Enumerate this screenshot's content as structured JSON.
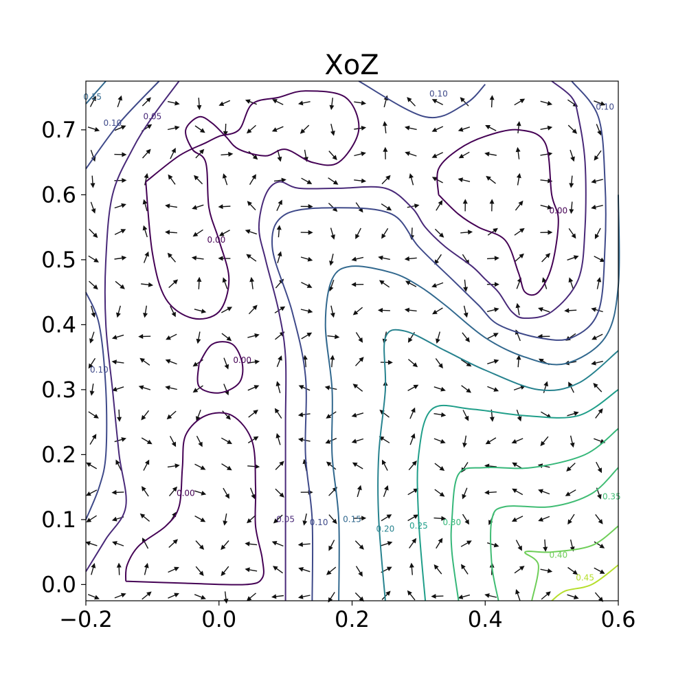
{
  "chart_data": {
    "type": "contour",
    "title": "XoZ",
    "xlabel": "",
    "ylabel": "",
    "xlim": [
      -0.2,
      0.6
    ],
    "ylim": [
      -0.025,
      0.775
    ],
    "x_ticks": [
      -0.2,
      0.0,
      0.2,
      0.4,
      0.6
    ],
    "x_tick_labels": [
      "−0.2",
      "0.0",
      "0.2",
      "0.4",
      "0.6"
    ],
    "y_ticks": [
      0.0,
      0.1,
      0.2,
      0.3,
      0.4,
      0.5,
      0.6,
      0.7
    ],
    "y_tick_labels": [
      "0.0",
      "0.1",
      "0.2",
      "0.3",
      "0.4",
      "0.5",
      "0.6",
      "0.7"
    ],
    "grid": false,
    "colormap": "viridis",
    "quiver": {
      "color": "#111111",
      "grid_step": 0.04
    },
    "levels": [
      {
        "value": 0.0,
        "label": "0.00",
        "color": "#440154",
        "paths": [
          [
            [
              -0.14,
              0.005
            ],
            [
              -0.138,
              0.03
            ],
            [
              -0.12,
              0.06
            ],
            [
              -0.08,
              0.09
            ],
            [
              -0.06,
              0.12
            ],
            [
              -0.055,
              0.18
            ],
            [
              -0.05,
              0.23
            ],
            [
              -0.02,
              0.26
            ],
            [
              0.02,
              0.26
            ],
            [
              0.05,
              0.22
            ],
            [
              0.055,
              0.15
            ],
            [
              0.055,
              0.09
            ],
            [
              0.065,
              0.04
            ],
            [
              0.065,
              0.01
            ],
            [
              0.04,
              0.0
            ],
            [
              -0.05,
              0.002
            ],
            [
              -0.14,
              0.005
            ]
          ],
          [
            [
              -0.03,
              0.34
            ],
            [
              -0.01,
              0.37
            ],
            [
              0.02,
              0.37
            ],
            [
              0.035,
              0.34
            ],
            [
              0.03,
              0.31
            ],
            [
              0.0,
              0.295
            ],
            [
              -0.03,
              0.305
            ],
            [
              -0.03,
              0.34
            ]
          ],
          [
            [
              -0.11,
              0.62
            ],
            [
              -0.1,
              0.51
            ],
            [
              -0.08,
              0.44
            ],
            [
              -0.04,
              0.41
            ],
            [
              0.0,
              0.42
            ],
            [
              0.015,
              0.47
            ],
            [
              0.0,
              0.53
            ],
            [
              -0.015,
              0.58
            ],
            [
              -0.02,
              0.65
            ],
            [
              -0.04,
              0.67
            ],
            [
              -0.05,
              0.7
            ],
            [
              -0.03,
              0.72
            ],
            [
              -0.01,
              0.71
            ],
            [
              0.01,
              0.69
            ],
            [
              0.03,
              0.67
            ],
            [
              0.07,
              0.66
            ],
            [
              0.1,
              0.67
            ],
            [
              0.14,
              0.65
            ],
            [
              0.18,
              0.65
            ],
            [
              0.21,
              0.7
            ],
            [
              0.19,
              0.75
            ],
            [
              0.13,
              0.76
            ],
            [
              0.09,
              0.75
            ],
            [
              0.05,
              0.74
            ],
            [
              0.03,
              0.7
            ],
            [
              0.0,
              0.69
            ],
            [
              -0.02,
              0.68
            ],
            [
              -0.06,
              0.66
            ],
            [
              -0.11,
              0.62
            ]
          ],
          [
            [
              0.33,
              0.6
            ],
            [
              0.33,
              0.64
            ],
            [
              0.36,
              0.67
            ],
            [
              0.4,
              0.69
            ],
            [
              0.45,
              0.7
            ],
            [
              0.49,
              0.68
            ],
            [
              0.5,
              0.6
            ],
            [
              0.51,
              0.56
            ],
            [
              0.5,
              0.49
            ],
            [
              0.48,
              0.45
            ],
            [
              0.46,
              0.45
            ],
            [
              0.45,
              0.48
            ],
            [
              0.43,
              0.53
            ],
            [
              0.39,
              0.55
            ],
            [
              0.36,
              0.57
            ],
            [
              0.33,
              0.6
            ]
          ]
        ]
      },
      {
        "value": 0.05,
        "label": "0.05",
        "color": "#482878",
        "paths": [
          [
            [
              -0.06,
              0.775
            ],
            [
              -0.1,
              0.72
            ],
            [
              -0.13,
              0.67
            ],
            [
              -0.16,
              0.6
            ],
            [
              -0.17,
              0.5
            ],
            [
              -0.17,
              0.4
            ],
            [
              -0.16,
              0.3
            ],
            [
              -0.15,
              0.2
            ],
            [
              -0.14,
              0.12
            ],
            [
              -0.17,
              0.07
            ],
            [
              -0.2,
              0.02
            ]
          ],
          [
            [
              0.1,
              -0.025
            ],
            [
              0.1,
              0.05
            ],
            [
              0.1,
              0.15
            ],
            [
              0.1,
              0.25
            ],
            [
              0.1,
              0.35
            ],
            [
              0.09,
              0.42
            ],
            [
              0.07,
              0.5
            ],
            [
              0.06,
              0.55
            ],
            [
              0.07,
              0.6
            ],
            [
              0.09,
              0.62
            ],
            [
              0.12,
              0.61
            ],
            [
              0.18,
              0.61
            ],
            [
              0.25,
              0.61
            ],
            [
              0.29,
              0.58
            ],
            [
              0.31,
              0.55
            ],
            [
              0.34,
              0.52
            ],
            [
              0.38,
              0.49
            ],
            [
              0.4,
              0.47
            ],
            [
              0.42,
              0.45
            ],
            [
              0.44,
              0.42
            ],
            [
              0.46,
              0.41
            ],
            [
              0.5,
              0.42
            ],
            [
              0.54,
              0.47
            ],
            [
              0.55,
              0.55
            ],
            [
              0.55,
              0.65
            ],
            [
              0.54,
              0.72
            ],
            [
              0.53,
              0.75
            ],
            [
              0.5,
              0.775
            ]
          ]
        ]
      },
      {
        "value": 0.1,
        "label": "0.10",
        "color": "#3e4989",
        "paths": [
          [
            [
              -0.09,
              0.775
            ],
            [
              -0.15,
              0.71
            ],
            [
              -0.2,
              0.64
            ]
          ],
          [
            [
              0.21,
              0.775
            ],
            [
              0.31,
              0.72
            ],
            [
              0.37,
              0.74
            ],
            [
              0.4,
              0.77
            ]
          ],
          [
            [
              0.53,
              0.775
            ],
            [
              0.57,
              0.72
            ],
            [
              0.58,
              0.62
            ],
            [
              0.58,
              0.52
            ],
            [
              0.57,
              0.42
            ],
            [
              0.53,
              0.38
            ],
            [
              0.48,
              0.38
            ],
            [
              0.42,
              0.4
            ],
            [
              0.39,
              0.43
            ],
            [
              0.35,
              0.47
            ],
            [
              0.3,
              0.52
            ],
            [
              0.26,
              0.57
            ],
            [
              0.18,
              0.58
            ],
            [
              0.1,
              0.57
            ],
            [
              0.08,
              0.52
            ],
            [
              0.11,
              0.42
            ],
            [
              0.13,
              0.32
            ],
            [
              0.13,
              0.2
            ],
            [
              0.14,
              0.1
            ],
            [
              0.14,
              -0.025
            ]
          ],
          [
            [
              -0.2,
              0.45
            ],
            [
              -0.18,
              0.4
            ],
            [
              -0.17,
              0.3
            ],
            [
              -0.17,
              0.2
            ],
            [
              -0.18,
              0.15
            ],
            [
              -0.2,
              0.1
            ]
          ]
        ]
      },
      {
        "value": 0.15,
        "label": "0.15",
        "color": "#31688e",
        "paths": [
          [
            [
              -0.17,
              0.775
            ],
            [
              -0.2,
              0.74
            ]
          ],
          [
            [
              0.6,
              0.6
            ],
            [
              0.6,
              0.46
            ],
            [
              0.58,
              0.38
            ],
            [
              0.52,
              0.34
            ],
            [
              0.46,
              0.35
            ],
            [
              0.4,
              0.38
            ],
            [
              0.34,
              0.43
            ],
            [
              0.3,
              0.46
            ],
            [
              0.26,
              0.48
            ],
            [
              0.2,
              0.49
            ],
            [
              0.17,
              0.47
            ],
            [
              0.16,
              0.4
            ],
            [
              0.17,
              0.3
            ],
            [
              0.17,
              0.2
            ],
            [
              0.18,
              0.1
            ],
            [
              0.18,
              -0.025
            ]
          ]
        ]
      },
      {
        "value": 0.2,
        "label": "0.20",
        "color": "#26828e",
        "paths": [
          [
            [
              0.6,
              0.36
            ],
            [
              0.54,
              0.31
            ],
            [
              0.48,
              0.3
            ],
            [
              0.4,
              0.33
            ],
            [
              0.34,
              0.36
            ],
            [
              0.28,
              0.39
            ],
            [
              0.25,
              0.38
            ],
            [
              0.25,
              0.3
            ],
            [
              0.24,
              0.2
            ],
            [
              0.24,
              0.1
            ],
            [
              0.25,
              -0.025
            ]
          ]
        ]
      },
      {
        "value": 0.25,
        "label": "0.25",
        "color": "#1f9e89",
        "paths": [
          [
            [
              0.6,
              0.3
            ],
            [
              0.54,
              0.26
            ],
            [
              0.46,
              0.26
            ],
            [
              0.38,
              0.27
            ],
            [
              0.32,
              0.27
            ],
            [
              0.3,
              0.2
            ],
            [
              0.3,
              0.1
            ],
            [
              0.31,
              -0.025
            ]
          ]
        ]
      },
      {
        "value": 0.3,
        "label": "0.30",
        "color": "#35b779",
        "paths": [
          [
            [
              0.6,
              0.24
            ],
            [
              0.55,
              0.2
            ],
            [
              0.47,
              0.18
            ],
            [
              0.4,
              0.18
            ],
            [
              0.36,
              0.17
            ],
            [
              0.35,
              0.1
            ],
            [
              0.35,
              0.05
            ],
            [
              0.36,
              -0.025
            ]
          ]
        ]
      },
      {
        "value": 0.35,
        "label": "0.35",
        "color": "#3fbc73",
        "paths": [
          [
            [
              0.6,
              0.18
            ],
            [
              0.56,
              0.14
            ],
            [
              0.5,
              0.12
            ],
            [
              0.43,
              0.12
            ],
            [
              0.41,
              0.1
            ],
            [
              0.41,
              0.03
            ],
            [
              0.42,
              -0.025
            ]
          ]
        ]
      },
      {
        "value": 0.4,
        "label": "0.40",
        "color": "#6ece58",
        "paths": [
          [
            [
              0.6,
              0.09
            ],
            [
              0.56,
              0.06
            ],
            [
              0.5,
              0.05
            ],
            [
              0.46,
              0.05
            ],
            [
              0.48,
              0.03
            ],
            [
              0.47,
              -0.025
            ]
          ]
        ]
      },
      {
        "value": 0.45,
        "label": "0.45",
        "color": "#b5de2b",
        "paths": [
          [
            [
              0.6,
              0.03
            ],
            [
              0.56,
              0.0
            ],
            [
              0.52,
              -0.01
            ],
            [
              0.5,
              -0.025
            ]
          ]
        ]
      }
    ],
    "label_positions": [
      {
        "label": "0.15",
        "x": -0.19,
        "y": 0.75,
        "color": "#31688e"
      },
      {
        "label": "0.10",
        "x": -0.16,
        "y": 0.71,
        "color": "#3e4989"
      },
      {
        "label": "0.05",
        "x": -0.1,
        "y": 0.72,
        "color": "#482878"
      },
      {
        "label": "0.10",
        "x": 0.33,
        "y": 0.755,
        "color": "#3e4989"
      },
      {
        "label": "0.10",
        "x": 0.58,
        "y": 0.735,
        "color": "#3e4989"
      },
      {
        "label": "0.00",
        "x": 0.51,
        "y": 0.575,
        "color": "#440154"
      },
      {
        "label": "0.00",
        "x": -0.004,
        "y": 0.53,
        "color": "#440154"
      },
      {
        "label": "0.00",
        "x": 0.035,
        "y": 0.345,
        "color": "#440154"
      },
      {
        "label": "0.10",
        "x": -0.18,
        "y": 0.33,
        "color": "#3e4989"
      },
      {
        "label": "0.00",
        "x": -0.05,
        "y": 0.14,
        "color": "#440154"
      },
      {
        "label": "0.05",
        "x": 0.1,
        "y": 0.1,
        "color": "#482878"
      },
      {
        "label": "0.10",
        "x": 0.15,
        "y": 0.095,
        "color": "#3e4989"
      },
      {
        "label": "0.15",
        "x": 0.2,
        "y": 0.1,
        "color": "#31688e"
      },
      {
        "label": "0.20",
        "x": 0.25,
        "y": 0.085,
        "color": "#26828e"
      },
      {
        "label": "0.25",
        "x": 0.3,
        "y": 0.09,
        "color": "#1f9e89"
      },
      {
        "label": "0.30",
        "x": 0.35,
        "y": 0.095,
        "color": "#35b779"
      },
      {
        "label": "0.35",
        "x": 0.59,
        "y": 0.135,
        "color": "#3fbc73"
      },
      {
        "label": "0.40",
        "x": 0.51,
        "y": 0.045,
        "color": "#6ece58"
      },
      {
        "label": "0.45",
        "x": 0.55,
        "y": 0.01,
        "color": "#b5de2b"
      }
    ]
  }
}
